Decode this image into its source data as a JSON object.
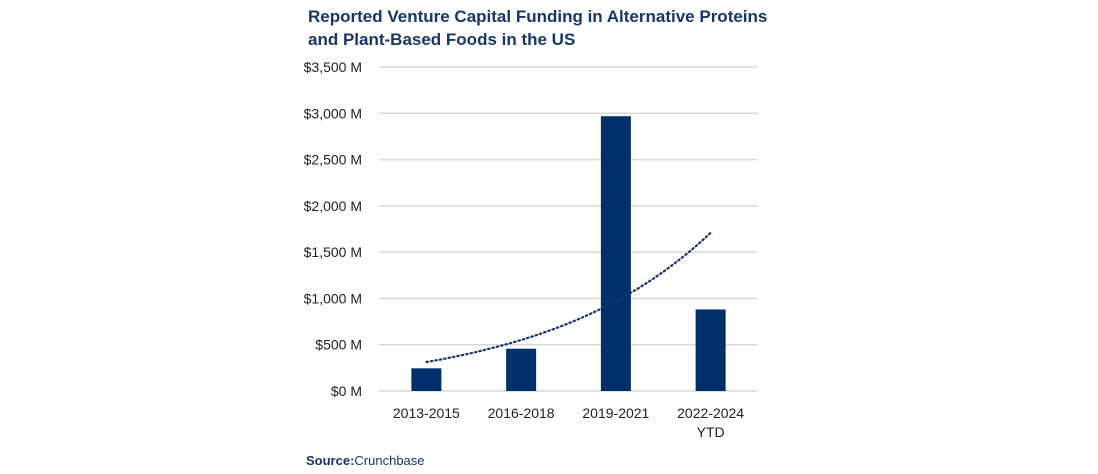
{
  "chart_data": {
    "type": "bar",
    "title": "Reported Venture Capital Funding in Alternative Proteins and Plant-Based Foods in the US",
    "categories": [
      [
        "2013-2015"
      ],
      [
        "2016-2018"
      ],
      [
        "2019-2021"
      ],
      [
        "2022-2024",
        "YTD"
      ]
    ],
    "values": [
      245,
      457,
      2968,
      881
    ],
    "unit": "$ M",
    "ylim": [
      0,
      3500
    ],
    "yticks": [
      0,
      500,
      1000,
      1500,
      2000,
      2500,
      3000,
      3500
    ],
    "ytick_labels": [
      "$0 M",
      "$500 M",
      "$1,000 M",
      "$1,500 M",
      "$2,000 M",
      "$2,500 M",
      "$3,000 M",
      "$3,500 M"
    ],
    "trendline": {
      "type": "exponential",
      "style": "dotted",
      "values": [
        313,
        551,
        970,
        1709
      ]
    },
    "grid": true,
    "colors": {
      "bar": "#00306b",
      "trend": "#1a3668",
      "grid": "#d9d9d9"
    }
  },
  "source": {
    "label": "Source:",
    "text": "Crunchbase"
  }
}
